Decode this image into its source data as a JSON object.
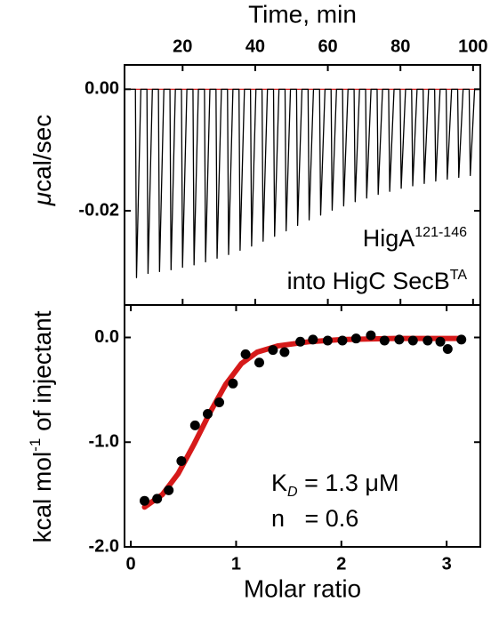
{
  "chart_data": [
    {
      "type": "line",
      "xlabel": "Time, min",
      "ylabel": [
        {
          "text": "μ",
          "style": "italic"
        },
        {
          "text": "cal/sec"
        }
      ],
      "xlim": [
        4,
        102
      ],
      "xticks": [
        20,
        40,
        60,
        80,
        100
      ],
      "ylim": [
        -0.0355,
        0.004
      ],
      "yticks": [
        {
          "value": 0,
          "label": "0.00"
        },
        {
          "value": -0.02,
          "label": "-0.02"
        }
      ],
      "annotations": [
        [
          {
            "text": "HigA"
          },
          {
            "text": "121-146",
            "style": "sup"
          }
        ],
        [
          {
            "text": "into HigC SecB"
          },
          {
            "text": "TA",
            "style": "sup"
          }
        ]
      ],
      "series": [
        {
          "color": "#d62020",
          "x": [
            4,
            102
          ],
          "values": [
            0,
            0
          ]
        },
        {
          "color": "#000000",
          "x": [
            4,
            7,
            7.3,
            8.5,
            10.17,
            10.47,
            11.67,
            13.34,
            13.64,
            14.84,
            16.51,
            16.81,
            18.01,
            19.68,
            19.98,
            21.18,
            22.85,
            23.15,
            24.35,
            26.02,
            26.32,
            27.52,
            29.19,
            29.49,
            30.69,
            32.36,
            32.66,
            33.86,
            35.53,
            35.83,
            37.03,
            38.7,
            39,
            40.2,
            41.87,
            42.17,
            43.37,
            45.04,
            45.34,
            46.54,
            48.21,
            48.51,
            49.71,
            51.38,
            51.68,
            52.88,
            54.55,
            54.85,
            56.05,
            57.72,
            58.02,
            59.22,
            60.89,
            61.19,
            62.39,
            64.06,
            64.36,
            65.56,
            67.23,
            67.53,
            68.73,
            70.4,
            70.7,
            71.9,
            73.57,
            73.87,
            75.07,
            76.74,
            77.04,
            78.24,
            79.91,
            80.21,
            81.41,
            83.08,
            83.38,
            84.58,
            86.25,
            86.55,
            87.75,
            89.42,
            89.72,
            90.92,
            92.59,
            92.89,
            94.09,
            95.76,
            96.06,
            97.26,
            98.93,
            99.23,
            100.43,
            102
          ],
          "values": [
            0,
            0,
            -0.031,
            0,
            0,
            -0.0303,
            0,
            0,
            -0.03,
            0,
            0,
            -0.0297,
            0,
            0,
            -0.0293,
            0,
            0,
            -0.0289,
            0,
            0,
            -0.0284,
            0,
            0,
            -0.0278,
            0,
            0,
            -0.0272,
            0,
            0,
            -0.0265,
            0,
            0,
            -0.0258,
            0,
            0,
            -0.025,
            0,
            0,
            -0.0242,
            0,
            0,
            -0.0233,
            0,
            0,
            -0.0224,
            0,
            0,
            -0.0215,
            0,
            0,
            -0.0207,
            0,
            0,
            -0.0199,
            0,
            0,
            -0.0192,
            0,
            0,
            -0.0185,
            0,
            0,
            -0.0179,
            0,
            0,
            -0.0173,
            0,
            0,
            -0.0168,
            0,
            0,
            -0.0163,
            0,
            0,
            -0.0159,
            0,
            0,
            -0.0155,
            0,
            0,
            -0.0151,
            0,
            0,
            -0.0148,
            0,
            0,
            -0.0145,
            0,
            0,
            -0.0142,
            0,
            0
          ]
        }
      ]
    },
    {
      "type": "scatter",
      "xlabel": "Molar ratio",
      "ylabel": [
        {
          "text": "kcal mol"
        },
        {
          "text": "-1",
          "style": "sup"
        },
        {
          "text": " of injectant"
        }
      ],
      "xlim": [
        -0.06,
        3.32
      ],
      "xticks": [
        0,
        1,
        2,
        3
      ],
      "ylim": [
        -2.0,
        0.31
      ],
      "yticks": [
        {
          "value": 0,
          "label": "0.0"
        },
        {
          "value": -1,
          "label": "-1.0"
        },
        {
          "value": -2,
          "label": "-2.0"
        }
      ],
      "annotations": [
        [
          {
            "text": "K"
          },
          {
            "text": "D",
            "style": "sub"
          },
          {
            "text": " = 1.3 μM"
          }
        ],
        [
          {
            "text": "n   = 0.6"
          }
        ]
      ],
      "series": [
        {
          "kind": "line",
          "color": "#d61a1a",
          "x": [
            0.13,
            0.3,
            0.45,
            0.6,
            0.75,
            0.9,
            1.05,
            1.2,
            1.4,
            1.7,
            2.0,
            2.5,
            3.14
          ],
          "values": [
            -1.62,
            -1.5,
            -1.3,
            -1.02,
            -0.72,
            -0.45,
            -0.25,
            -0.14,
            -0.08,
            -0.04,
            -0.02,
            -0.01,
            -0.01
          ]
        },
        {
          "kind": "scatter",
          "color": "#000000",
          "x": [
            0.13,
            0.25,
            0.36,
            0.48,
            0.61,
            0.73,
            0.84,
            0.97,
            1.09,
            1.22,
            1.35,
            1.46,
            1.61,
            1.73,
            1.87,
            2.01,
            2.14,
            2.28,
            2.41,
            2.55,
            2.68,
            2.82,
            2.94,
            3.01,
            3.14
          ],
          "values": [
            -1.56,
            -1.54,
            -1.46,
            -1.18,
            -0.84,
            -0.73,
            -0.62,
            -0.44,
            -0.16,
            -0.24,
            -0.12,
            -0.14,
            -0.04,
            -0.02,
            -0.03,
            -0.03,
            -0.01,
            0.02,
            -0.03,
            -0.02,
            -0.03,
            -0.03,
            -0.04,
            -0.11,
            -0.02
          ]
        }
      ]
    }
  ]
}
